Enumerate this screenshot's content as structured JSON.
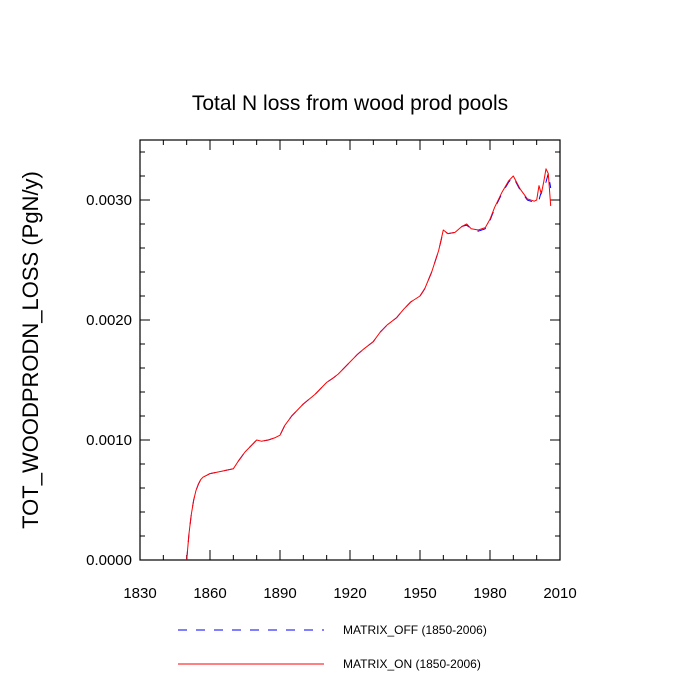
{
  "chart_data": {
    "type": "line",
    "title": "Total N loss from wood prod pools",
    "xlabel": "",
    "ylabel": "TOT_WOODPRODN_LOSS  (PgN/y)",
    "xlim": [
      1830,
      2010
    ],
    "ylim": [
      0,
      0.0035
    ],
    "x_ticks": [
      "1830",
      "1860",
      "1890",
      "1920",
      "1950",
      "1980",
      "2010"
    ],
    "y_ticks": [
      "0.0000",
      "0.0010",
      "0.0020",
      "0.0030"
    ],
    "x": [
      1850,
      1851,
      1852,
      1853,
      1854,
      1855,
      1856,
      1857,
      1858,
      1859,
      1860,
      1865,
      1870,
      1872,
      1875,
      1878,
      1880,
      1882,
      1885,
      1888,
      1890,
      1892,
      1895,
      1900,
      1905,
      1910,
      1913,
      1915,
      1920,
      1923,
      1926,
      1930,
      1933,
      1936,
      1940,
      1943,
      1946,
      1950,
      1952,
      1955,
      1958,
      1960,
      1962,
      1965,
      1968,
      1970,
      1972,
      1975,
      1978,
      1980,
      1982,
      1985,
      1988,
      1990,
      1993,
      1996,
      1999,
      2000,
      2001,
      2002,
      2003,
      2004,
      2005,
      2006
    ],
    "series": [
      {
        "name": "MATRIX_OFF (1850-2006)",
        "color": "#0000ff",
        "dash": "dashed",
        "values": [
          0.0,
          0.00022,
          0.00038,
          0.0005,
          0.00058,
          0.00063,
          0.00067,
          0.00069,
          0.0007,
          0.00071,
          0.00072,
          0.00074,
          0.00076,
          0.00082,
          0.0009,
          0.00096,
          0.001,
          0.00099,
          0.001,
          0.00102,
          0.00104,
          0.00112,
          0.0012,
          0.0013,
          0.00138,
          0.00148,
          0.00152,
          0.00155,
          0.00165,
          0.00171,
          0.00176,
          0.00182,
          0.0019,
          0.00196,
          0.00202,
          0.00209,
          0.00215,
          0.0022,
          0.00226,
          0.0024,
          0.00258,
          0.00274,
          0.00272,
          0.00273,
          0.00278,
          0.00279,
          0.00276,
          0.00274,
          0.00276,
          0.00283,
          0.00293,
          0.00305,
          0.00315,
          0.00319,
          0.00308,
          0.003,
          0.00298,
          0.00298,
          0.003,
          0.00307,
          0.0031,
          0.00315,
          0.00322,
          0.0031
        ]
      },
      {
        "name": "MATRIX_ON (1850-2006)",
        "color": "#ff0000",
        "dash": "solid",
        "values": [
          0.0,
          0.00022,
          0.00038,
          0.0005,
          0.00058,
          0.00063,
          0.00067,
          0.00069,
          0.0007,
          0.00071,
          0.00072,
          0.00074,
          0.00076,
          0.00082,
          0.0009,
          0.00096,
          0.001,
          0.00099,
          0.001,
          0.00102,
          0.00104,
          0.00112,
          0.0012,
          0.0013,
          0.00138,
          0.00148,
          0.00152,
          0.00155,
          0.00165,
          0.00171,
          0.00176,
          0.00182,
          0.0019,
          0.00196,
          0.00202,
          0.00209,
          0.00215,
          0.0022,
          0.00226,
          0.0024,
          0.00258,
          0.00275,
          0.00272,
          0.00273,
          0.00278,
          0.0028,
          0.00276,
          0.00275,
          0.00277,
          0.00284,
          0.00294,
          0.00306,
          0.00316,
          0.0032,
          0.00309,
          0.00301,
          0.00299,
          0.003,
          0.00312,
          0.00305,
          0.00315,
          0.00326,
          0.00322,
          0.00295
        ]
      }
    ],
    "legend": {
      "placement": "bottom",
      "entries": [
        {
          "label": "MATRIX_OFF (1850-2006)",
          "color": "#0000ff",
          "dash": "dashed"
        },
        {
          "label": "MATRIX_ON (1850-2006)",
          "color": "#ff0000",
          "dash": "solid"
        }
      ]
    },
    "grid": false
  }
}
